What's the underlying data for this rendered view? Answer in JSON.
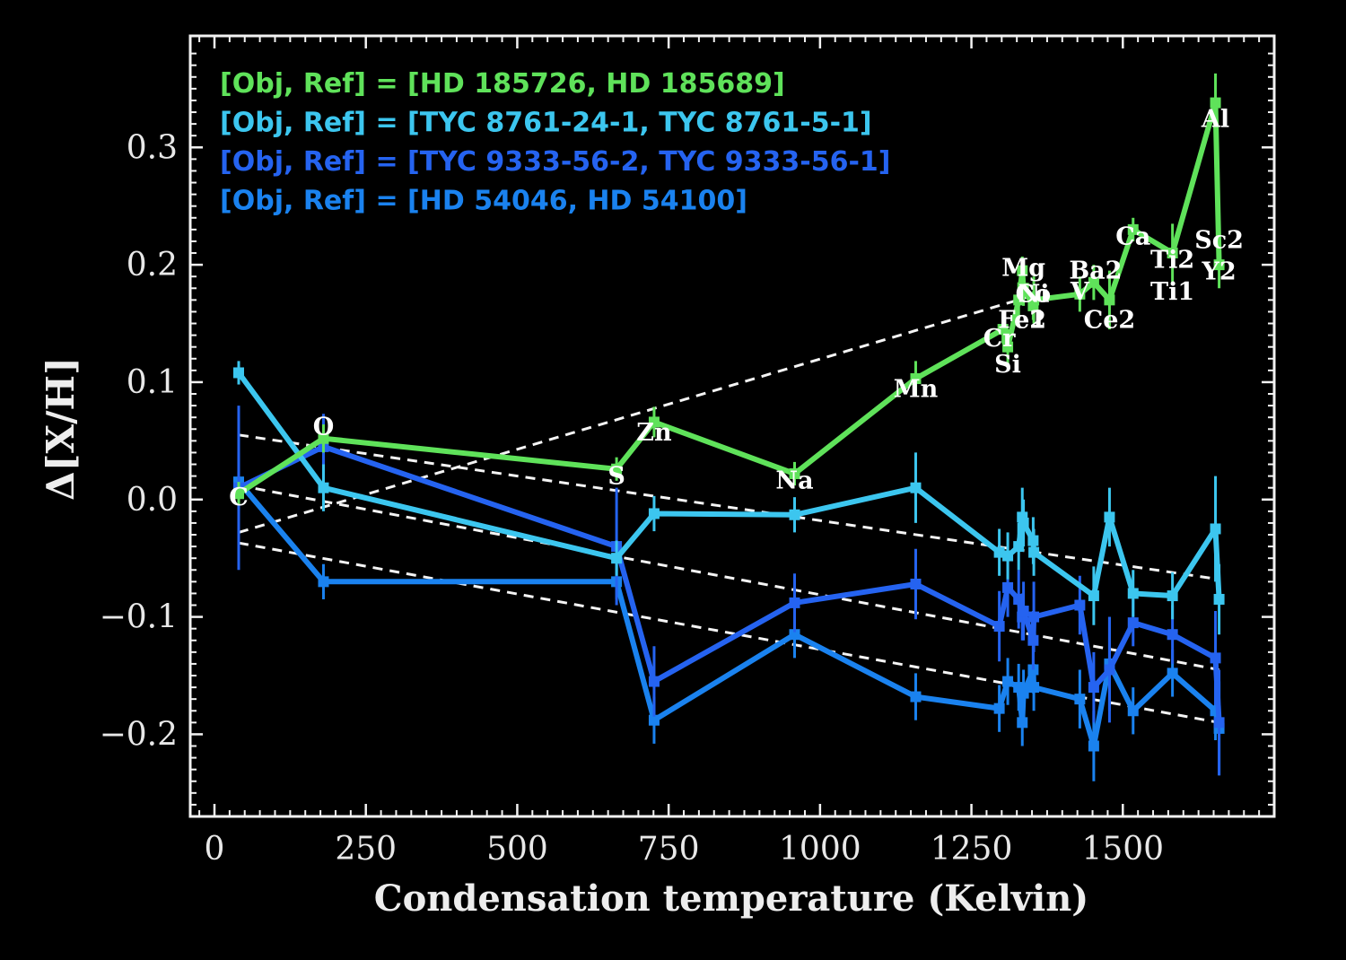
{
  "chart_data": {
    "type": "line",
    "xlabel": "Condensation temperature (Kelvin)",
    "ylabel": "Δ[X/H]",
    "xlim": [
      -40,
      1750
    ],
    "ylim": [
      -0.27,
      0.395
    ],
    "x_ticks": [
      0,
      250,
      500,
      750,
      1000,
      1250,
      1500
    ],
    "x_tick_labels": [
      "0",
      "250",
      "500",
      "750",
      "1000",
      "1250",
      "1500"
    ],
    "y_ticks": [
      -0.2,
      -0.1,
      0.0,
      0.1,
      0.2,
      0.3
    ],
    "y_tick_labels": [
      "−0.2",
      "−0.1",
      "0.0",
      "0.1",
      "0.2",
      "0.3"
    ],
    "legend_position": "top-left",
    "series": [
      {
        "name": "[Obj, Ref] = [HD 185726, HD 185689]",
        "color": "#5fe25a",
        "x": [
          40,
          180,
          664,
          726,
          958,
          1158,
          1302,
          1310,
          1328,
          1334,
          1336,
          1352,
          1353,
          1429,
          1452,
          1478,
          1517,
          1582,
          1653,
          1659
        ],
        "y": [
          0.005,
          0.052,
          0.026,
          0.066,
          0.022,
          0.103,
          0.145,
          0.13,
          0.17,
          0.195,
          0.18,
          0.165,
          0.17,
          0.175,
          0.185,
          0.17,
          0.23,
          0.21,
          0.338,
          0.2
        ],
        "yerr": [
          0.01,
          0.012,
          0.01,
          0.013,
          0.01,
          0.015,
          0.012,
          0.015,
          0.015,
          0.012,
          0.015,
          0.012,
          0.02,
          0.015,
          0.015,
          0.025,
          0.01,
          0.025,
          0.025,
          0.02
        ]
      },
      {
        "name": "[Obj, Ref] = [TYC 8761-24-1, TYC 8761-5-1]",
        "color": "#3cc6ef",
        "x": [
          40,
          180,
          664,
          726,
          958,
          1158,
          1296,
          1310,
          1328,
          1334,
          1336,
          1352,
          1353,
          1452,
          1478,
          1517,
          1582,
          1653,
          1659
        ],
        "y": [
          0.108,
          0.01,
          -0.05,
          -0.012,
          -0.013,
          0.01,
          -0.045,
          -0.048,
          -0.04,
          -0.015,
          -0.02,
          -0.035,
          -0.045,
          -0.082,
          -0.015,
          -0.08,
          -0.082,
          -0.025,
          -0.085
        ],
        "yerr": [
          0.01,
          0.02,
          0.015,
          0.015,
          0.015,
          0.03,
          0.02,
          0.02,
          0.02,
          0.025,
          0.02,
          0.02,
          0.02,
          0.025,
          0.025,
          0.02,
          0.02,
          0.045,
          0.03
        ]
      },
      {
        "name": "[Obj, Ref] = [TYC 9333-56-2, TYC 9333-56-1]",
        "color": "#2563f0",
        "x": [
          40,
          180,
          664,
          726,
          958,
          1158,
          1296,
          1310,
          1328,
          1334,
          1336,
          1352,
          1353,
          1429,
          1452,
          1478,
          1517,
          1582,
          1653,
          1659
        ],
        "y": [
          0.01,
          0.045,
          -0.04,
          -0.155,
          -0.088,
          -0.072,
          -0.108,
          -0.075,
          -0.085,
          -0.1,
          -0.095,
          -0.12,
          -0.1,
          -0.09,
          -0.16,
          -0.145,
          -0.105,
          -0.115,
          -0.135,
          -0.19
        ],
        "yerr": [
          0.07,
          0.028,
          0.05,
          0.03,
          0.025,
          0.03,
          0.03,
          0.025,
          0.025,
          0.02,
          0.025,
          0.025,
          0.03,
          0.025,
          0.03,
          0.045,
          0.02,
          0.025,
          0.04,
          0.045
        ]
      },
      {
        "name": "[Obj, Ref] = [HD 54046, HD 54100]",
        "color": "#1a82ef",
        "x": [
          40,
          180,
          664,
          726,
          958,
          1158,
          1296,
          1310,
          1328,
          1334,
          1336,
          1352,
          1353,
          1429,
          1452,
          1478,
          1517,
          1582,
          1653,
          1659
        ],
        "y": [
          0.015,
          -0.07,
          -0.07,
          -0.188,
          -0.115,
          -0.168,
          -0.178,
          -0.155,
          -0.16,
          -0.19,
          -0.165,
          -0.145,
          -0.16,
          -0.17,
          -0.21,
          -0.14,
          -0.18,
          -0.148,
          -0.18,
          -0.195
        ],
        "yerr": [
          0.025,
          0.015,
          0.015,
          0.02,
          0.02,
          0.02,
          0.02,
          0.02,
          0.02,
          0.02,
          0.02,
          0.02,
          0.02,
          0.025,
          0.03,
          0.04,
          0.02,
          0.02,
          0.025,
          0.04
        ]
      }
    ],
    "trend_lines": [
      {
        "x": [
          40,
          1340
        ],
        "y": [
          -0.028,
          0.172
        ]
      },
      {
        "x": [
          40,
          1659
        ],
        "y": [
          0.055,
          -0.068
        ]
      },
      {
        "x": [
          40,
          1659
        ],
        "y": [
          0.012,
          -0.145
        ]
      },
      {
        "x": [
          40,
          1659
        ],
        "y": [
          -0.037,
          -0.19
        ]
      }
    ],
    "annotations": [
      {
        "text": "C",
        "x": 40,
        "y": 0.003
      },
      {
        "text": "O",
        "x": 180,
        "y": 0.063
      },
      {
        "text": "S",
        "x": 664,
        "y": 0.021
      },
      {
        "text": "Zn",
        "x": 726,
        "y": 0.058
      },
      {
        "text": "Na",
        "x": 958,
        "y": 0.017
      },
      {
        "text": "Mn",
        "x": 1158,
        "y": 0.095
      },
      {
        "text": "Cr",
        "x": 1296,
        "y": 0.138
      },
      {
        "text": "Si",
        "x": 1310,
        "y": 0.116
      },
      {
        "text": "Mg",
        "x": 1336,
        "y": 0.198
      },
      {
        "text": "Co",
        "x": 1352,
        "y": 0.176
      },
      {
        "text": "Ni",
        "x": 1353,
        "y": 0.176
      },
      {
        "text": "Fe1",
        "x": 1334,
        "y": 0.154
      },
      {
        "text": "Fe2",
        "x": 1334,
        "y": 0.154
      },
      {
        "text": "Ba2",
        "x": 1455,
        "y": 0.196
      },
      {
        "text": "V",
        "x": 1429,
        "y": 0.178
      },
      {
        "text": "Ce2",
        "x": 1478,
        "y": 0.154
      },
      {
        "text": "Ca",
        "x": 1517,
        "y": 0.225
      },
      {
        "text": "Ti2",
        "x": 1582,
        "y": 0.205
      },
      {
        "text": "Ti1",
        "x": 1582,
        "y": 0.178
      },
      {
        "text": "Sc2",
        "x": 1659,
        "y": 0.222
      },
      {
        "text": "Y2",
        "x": 1659,
        "y": 0.195
      },
      {
        "text": "Al",
        "x": 1653,
        "y": 0.325
      }
    ]
  }
}
